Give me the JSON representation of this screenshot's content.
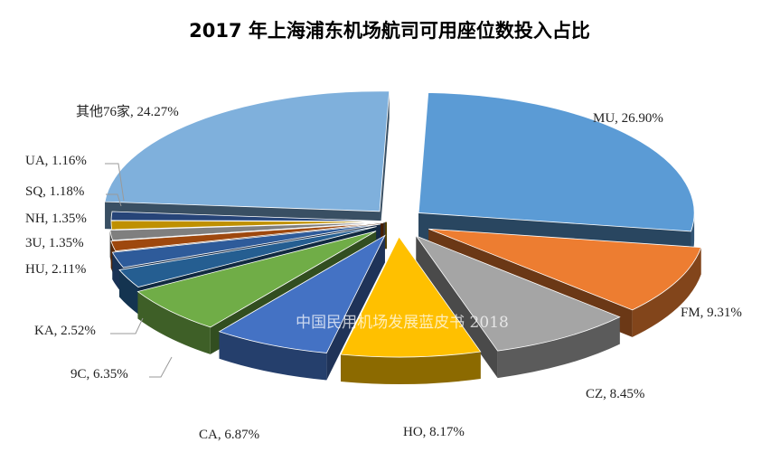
{
  "chart_data": {
    "type": "pie",
    "style": "3d-exploded",
    "title": "2017 年上海浦东机场航司可用座位数投入占比",
    "unit": "%",
    "slices": [
      {
        "label": "MU",
        "value": 26.9,
        "display": "MU, 26.90%",
        "color": "#5B9BD5"
      },
      {
        "label": "FM",
        "value": 9.31,
        "display": "FM, 9.31%",
        "color": "#ED7D31"
      },
      {
        "label": "CZ",
        "value": 8.45,
        "display": "CZ, 8.45%",
        "color": "#A5A5A5"
      },
      {
        "label": "HO",
        "value": 8.17,
        "display": "HO, 8.17%",
        "color": "#FFC000"
      },
      {
        "label": "CA",
        "value": 6.87,
        "display": "CA, 6.87%",
        "color": "#4472C4"
      },
      {
        "label": "9C",
        "value": 6.35,
        "display": "9C, 6.35%",
        "color": "#70AD47"
      },
      {
        "label": "KA",
        "value": 2.52,
        "display": "KA, 2.52%",
        "color": "#255E91"
      },
      {
        "label": "HU",
        "value": 2.11,
        "display": "HU, 2.11%",
        "color": "#2E5B9A"
      },
      {
        "label": "3U",
        "value": 1.35,
        "display": "3U, 1.35%",
        "color": "#9E480E"
      },
      {
        "label": "NH",
        "value": 1.35,
        "display": "NH, 1.35%",
        "color": "#7F7F7F"
      },
      {
        "label": "SQ",
        "value": 1.18,
        "display": "SQ, 1.18%",
        "color": "#BF9000"
      },
      {
        "label": "UA",
        "value": 1.16,
        "display": "UA, 1.16%",
        "color": "#264478"
      },
      {
        "label": "其他76家",
        "value": 24.27,
        "display": "其他76家, 24.27%",
        "color": "#7FB0DC"
      }
    ],
    "watermark": "中国民用机场发展蓝皮书 2018",
    "legend": "none"
  }
}
